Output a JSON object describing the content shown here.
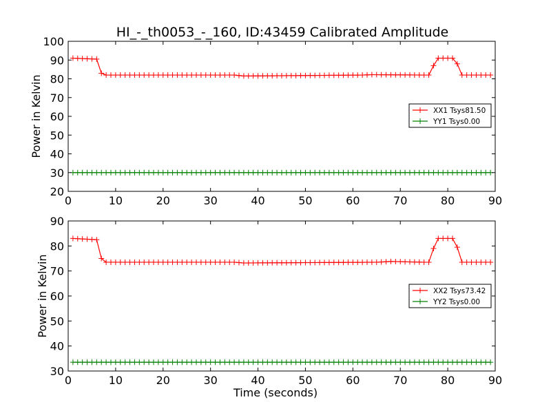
{
  "title": "HI_-_th0053_-_160, ID:43459 Calibrated Amplitude",
  "colors": {
    "red": "#ff0000",
    "green": "#008000"
  },
  "chart_data": [
    {
      "type": "line",
      "title": "HI_-_th0053_-_160, ID:43459 Calibrated Amplitude",
      "xlabel": "",
      "ylabel": "Power in Kelvin",
      "xlim": [
        0,
        90
      ],
      "ylim": [
        20,
        100
      ],
      "xticks": [
        "0",
        "10",
        "20",
        "30",
        "40",
        "50",
        "60",
        "70",
        "80",
        "90"
      ],
      "yticks": [
        "20",
        "30",
        "40",
        "50",
        "60",
        "70",
        "80",
        "90",
        "100"
      ],
      "grid": false,
      "legend_position": "right",
      "series": [
        {
          "name": "XX1 Tsys81.50",
          "color": "#ff0000",
          "marker": "+",
          "x": [
            1,
            6,
            7,
            8,
            35,
            37,
            62,
            64,
            75,
            76,
            77,
            78,
            81,
            82,
            83,
            89
          ],
          "y": [
            91,
            90.5,
            83,
            82,
            82,
            81.5,
            82,
            82.2,
            82,
            82,
            87,
            91,
            91,
            88,
            82,
            82
          ]
        },
        {
          "name": "YY1 Tsys0.00",
          "color": "#008000",
          "marker": "+",
          "x": [
            1,
            89
          ],
          "y": [
            30,
            30
          ]
        }
      ]
    },
    {
      "type": "line",
      "title": "",
      "xlabel": "Time (seconds)",
      "ylabel": "Power in Kelvin",
      "xlim": [
        0,
        90
      ],
      "ylim": [
        30,
        90
      ],
      "xticks": [
        "0",
        "10",
        "20",
        "30",
        "40",
        "50",
        "60",
        "70",
        "80",
        "90"
      ],
      "yticks": [
        "30",
        "40",
        "50",
        "60",
        "70",
        "80",
        "90"
      ],
      "grid": false,
      "legend_position": "right",
      "series": [
        {
          "name": "XX2 Tsys73.42",
          "color": "#ff0000",
          "marker": "+",
          "x": [
            1,
            6,
            7,
            8,
            35,
            37,
            65,
            68,
            75,
            76,
            77,
            78,
            81,
            82,
            83,
            89
          ],
          "y": [
            83,
            82.5,
            75,
            73.5,
            73.5,
            73.2,
            73.5,
            73.8,
            73.5,
            73.5,
            79,
            83,
            83,
            79.5,
            73.5,
            73.5
          ]
        },
        {
          "name": "YY2 Tsys0.00",
          "color": "#008000",
          "marker": "+",
          "x": [
            1,
            89
          ],
          "y": [
            33.5,
            33.5
          ]
        }
      ]
    }
  ]
}
